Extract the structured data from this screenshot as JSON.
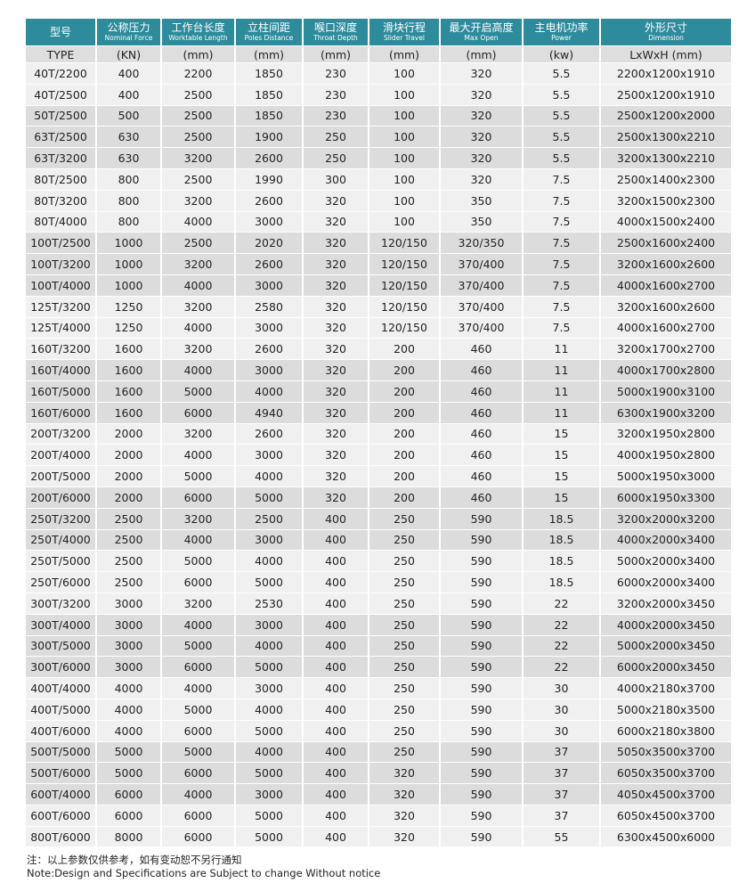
{
  "header": [
    {
      "zh": "型号",
      "en": ""
    },
    {
      "zh": "公称压力",
      "en": "Nominal Force"
    },
    {
      "zh": "工作台长度",
      "en": "Worktable Length"
    },
    {
      "zh": "立柱间距",
      "en": "Poles Distance"
    },
    {
      "zh": "喉口深度",
      "en": "Throat Depth"
    },
    {
      "zh": "滑块行程",
      "en": "Slider Travel"
    },
    {
      "zh": "最大开启高度",
      "en": "Max Open"
    },
    {
      "zh": "主电机功率",
      "en": "Power"
    },
    {
      "zh": "外形尺寸",
      "en": "Dimension"
    }
  ],
  "units": [
    "TYPE",
    "(KN)",
    "(mm)",
    "(mm)",
    "(mm)",
    "(mm)",
    "(mm)",
    "(kw)",
    "LxWxH (mm)"
  ],
  "rows": [
    [
      "40T/2200",
      "400",
      "2200",
      "1850",
      "230",
      "100",
      "320",
      "5.5",
      "2200x1200x1910"
    ],
    [
      "40T/2500",
      "400",
      "2500",
      "1850",
      "230",
      "100",
      "320",
      "5.5",
      "2500x1200x1910"
    ],
    [
      "50T/2500",
      "500",
      "2500",
      "1850",
      "230",
      "100",
      "320",
      "5.5",
      "2500x1200x2000"
    ],
    [
      "63T/2500",
      "630",
      "2500",
      "1900",
      "250",
      "100",
      "320",
      "5.5",
      "2500x1300x2210"
    ],
    [
      "63T/3200",
      "630",
      "3200",
      "2600",
      "250",
      "100",
      "320",
      "5.5",
      "3200x1300x2210"
    ],
    [
      "80T/2500",
      "800",
      "2500",
      "1990",
      "300",
      "100",
      "320",
      "7.5",
      "2500x1400x2300"
    ],
    [
      "80T/3200",
      "800",
      "3200",
      "2600",
      "320",
      "100",
      "350",
      "7.5",
      "3200x1500x2300"
    ],
    [
      "80T/4000",
      "800",
      "4000",
      "3000",
      "320",
      "100",
      "350",
      "7.5",
      "4000x1500x2400"
    ],
    [
      "100T/2500",
      "1000",
      "2500",
      "2020",
      "320",
      "120/150",
      "320/350",
      "7.5",
      "2500x1600x2400"
    ],
    [
      "100T/3200",
      "1000",
      "3200",
      "2600",
      "320",
      "120/150",
      "370/400",
      "7.5",
      "3200x1600x2600"
    ],
    [
      "100T/4000",
      "1000",
      "4000",
      "3000",
      "320",
      "120/150",
      "370/400",
      "7.5",
      "4000x1600x2700"
    ],
    [
      "125T/3200",
      "1250",
      "3200",
      "2580",
      "320",
      "120/150",
      "370/400",
      "7.5",
      "3200x1600x2600"
    ],
    [
      "125T/4000",
      "1250",
      "4000",
      "3000",
      "320",
      "120/150",
      "370/400",
      "7.5",
      "4000x1600x2700"
    ],
    [
      "160T/3200",
      "1600",
      "3200",
      "2600",
      "320",
      "200",
      "460",
      "11",
      "3200x1700x2700"
    ],
    [
      "160T/4000",
      "1600",
      "4000",
      "3000",
      "320",
      "200",
      "460",
      "11",
      "4000x1700x2800"
    ],
    [
      "160T/5000",
      "1600",
      "5000",
      "4000",
      "320",
      "200",
      "460",
      "11",
      "5000x1900x3100"
    ],
    [
      "160T/6000",
      "1600",
      "6000",
      "4940",
      "320",
      "200",
      "460",
      "11",
      "6300x1900x3200"
    ],
    [
      "200T/3200",
      "2000",
      "3200",
      "2600",
      "320",
      "200",
      "460",
      "15",
      "3200x1950x2800"
    ],
    [
      "200T/4000",
      "2000",
      "4000",
      "3000",
      "320",
      "200",
      "460",
      "15",
      "4000x1950x2800"
    ],
    [
      "200T/5000",
      "2000",
      "5000",
      "4000",
      "320",
      "200",
      "460",
      "15",
      "5000x1950x3000"
    ],
    [
      "200T/6000",
      "2000",
      "6000",
      "5000",
      "320",
      "200",
      "460",
      "15",
      "6000x1950x3300"
    ],
    [
      "250T/3200",
      "2500",
      "3200",
      "2500",
      "400",
      "250",
      "590",
      "18.5",
      "3200x2000x3200"
    ],
    [
      "250T/4000",
      "2500",
      "4000",
      "3000",
      "400",
      "250",
      "590",
      "18.5",
      "4000x2000x3400"
    ],
    [
      "250T/5000",
      "2500",
      "5000",
      "4000",
      "400",
      "250",
      "590",
      "18.5",
      "5000x2000x3400"
    ],
    [
      "250T/6000",
      "2500",
      "6000",
      "5000",
      "400",
      "250",
      "590",
      "18.5",
      "6000x2000x3400"
    ],
    [
      "300T/3200",
      "3000",
      "3200",
      "2530",
      "400",
      "250",
      "590",
      "22",
      "3200x2000x3450"
    ],
    [
      "300T/4000",
      "3000",
      "4000",
      "3000",
      "400",
      "250",
      "590",
      "22",
      "4000x2000x3450"
    ],
    [
      "300T/5000",
      "3000",
      "5000",
      "4000",
      "400",
      "250",
      "590",
      "22",
      "5000x2000x3450"
    ],
    [
      "300T/6000",
      "3000",
      "6000",
      "5000",
      "400",
      "250",
      "590",
      "22",
      "6000x2000x3450"
    ],
    [
      "400T/4000",
      "4000",
      "4000",
      "3000",
      "400",
      "250",
      "590",
      "30",
      "4000x2180x3700"
    ],
    [
      "400T/5000",
      "4000",
      "5000",
      "4000",
      "400",
      "250",
      "590",
      "30",
      "5000x2180x3500"
    ],
    [
      "400T/6000",
      "4000",
      "6000",
      "5000",
      "400",
      "250",
      "590",
      "30",
      "6000x2180x3800"
    ],
    [
      "500T/5000",
      "5000",
      "5000",
      "4000",
      "400",
      "250",
      "590",
      "37",
      "5050x3500x3700"
    ],
    [
      "500T/6000",
      "5000",
      "6000",
      "5000",
      "400",
      "320",
      "590",
      "37",
      "6050x3500x3700"
    ],
    [
      "600T/4000",
      "6000",
      "4000",
      "3000",
      "400",
      "320",
      "590",
      "37",
      "4050x4500x3700"
    ],
    [
      "600T/6000",
      "6000",
      "6000",
      "5000",
      "400",
      "320",
      "590",
      "37",
      "6050x4500x3700"
    ],
    [
      "800T/6000",
      "8000",
      "6000",
      "5000",
      "400",
      "320",
      "590",
      "55",
      "6300x4500x6000"
    ]
  ],
  "notes": {
    "zh": "注：以上参数仅供参考，如有变动恕不另行通知",
    "en": "Note:Design and Specifications are Subject to change Without notice"
  },
  "colors": {
    "header_bg": "#2d8b9c",
    "row_light": "#f0f0f0",
    "row_dark": "#dcdcdc"
  }
}
